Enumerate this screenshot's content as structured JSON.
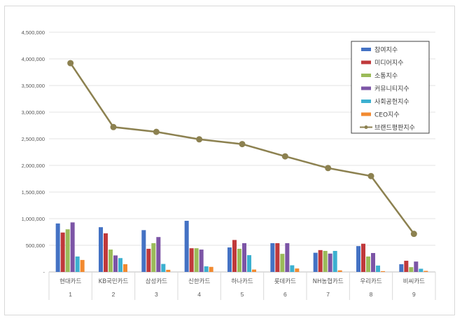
{
  "chart_data": {
    "type": "bar",
    "title": "",
    "xlabel": "",
    "ylabel": "",
    "ylim": [
      0,
      4500000
    ],
    "y_ticks": [
      "-",
      "500,000",
      "1,000,000",
      "1,500,000",
      "2,000,000",
      "2,500,000",
      "3,000,000",
      "3,500,000",
      "4,000,000",
      "4,500,000"
    ],
    "grid": true,
    "legend_position": "top-right",
    "categories": [
      "현대카드",
      "KB국민카드",
      "삼성카드",
      "신한카드",
      "하나카드",
      "롯데카드",
      "NH농협카드",
      "우리카드",
      "비씨카드"
    ],
    "category_ranks": [
      "1",
      "2",
      "3",
      "4",
      "5",
      "6",
      "7",
      "8",
      "9"
    ],
    "series": [
      {
        "name": "참여지수",
        "type": "bar",
        "color": "#4472c4",
        "values": [
          910000,
          840000,
          785000,
          960000,
          460000,
          540000,
          360000,
          485000,
          145000
        ]
      },
      {
        "name": "미디어지수",
        "type": "bar",
        "color": "#c0393b",
        "values": [
          740000,
          725000,
          435000,
          445000,
          600000,
          540000,
          410000,
          530000,
          210000
        ]
      },
      {
        "name": "소통지수",
        "type": "bar",
        "color": "#9bbb59",
        "values": [
          800000,
          420000,
          540000,
          445000,
          435000,
          340000,
          395000,
          290000,
          90000
        ]
      },
      {
        "name": "커뮤니티지수",
        "type": "bar",
        "color": "#7c55a6",
        "values": [
          930000,
          310000,
          655000,
          420000,
          540000,
          540000,
          345000,
          355000,
          195000
        ]
      },
      {
        "name": "사회공헌지수",
        "type": "bar",
        "color": "#3cb0d0",
        "values": [
          290000,
          260000,
          150000,
          105000,
          315000,
          125000,
          395000,
          120000,
          60000
        ]
      },
      {
        "name": "CEO지수",
        "type": "bar",
        "color": "#f28a30",
        "values": [
          225000,
          145000,
          40000,
          95000,
          45000,
          65000,
          30000,
          15000,
          20000
        ]
      },
      {
        "name": "브랜드평판지수",
        "type": "line",
        "color": "#8c8150",
        "values": [
          3920000,
          2720000,
          2630000,
          2490000,
          2400000,
          2170000,
          1950000,
          1800000,
          715000
        ]
      }
    ]
  }
}
